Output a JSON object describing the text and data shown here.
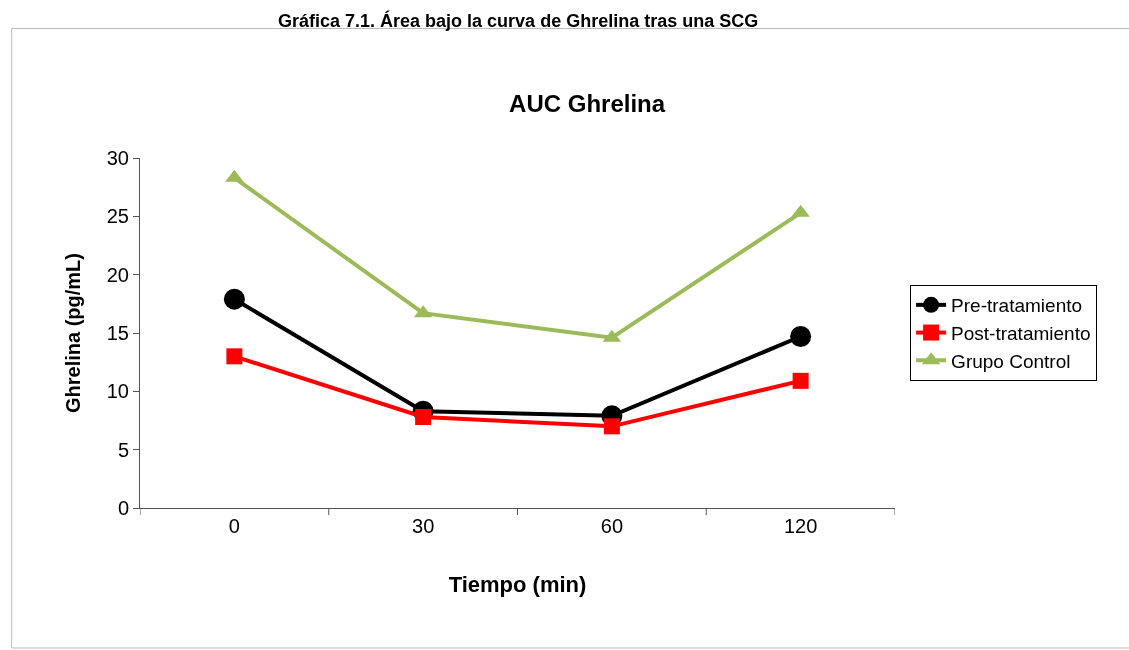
{
  "chart_data": {
    "type": "line",
    "title": "AUC Ghrelina",
    "xlabel": "Tiempo (min)",
    "ylabel": "Ghrelina (pg/mL)",
    "annotations": [
      "Gráfica 7.1. Área bajo la curva de Ghrelina tras una SCG"
    ],
    "categories": [
      "0",
      "30",
      "60",
      "120"
    ],
    "series": [
      {
        "name": "Pre-tratamiento",
        "color": "#000000",
        "marker": "circle",
        "values": [
          17.9,
          8.3,
          7.9,
          14.7
        ]
      },
      {
        "name": "Post-tratamiento",
        "color": "#ff0000",
        "marker": "square",
        "values": [
          13.0,
          7.8,
          7.0,
          10.9
        ]
      },
      {
        "name": "Grupo Control",
        "color": "#9bbb59",
        "marker": "triangle",
        "values": [
          28.3,
          16.7,
          14.6,
          25.3
        ]
      }
    ],
    "ylim": [
      0,
      30
    ],
    "yticks": [
      0,
      5,
      10,
      15,
      20,
      25,
      30
    ],
    "legend": "right",
    "line_style": "solid"
  }
}
